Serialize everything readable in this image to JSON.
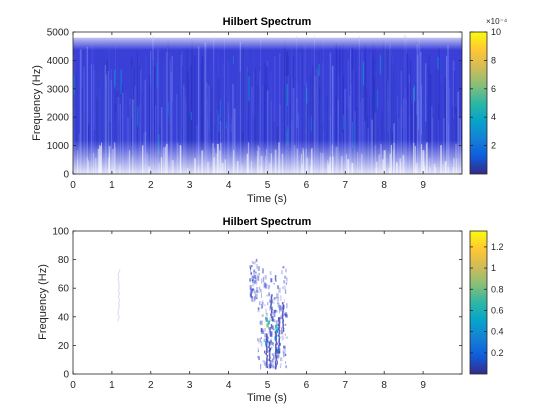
{
  "chart_data": [
    {
      "type": "heatmap",
      "title": "Hilbert Spectrum",
      "xlabel": "Time (s)",
      "ylabel": "Frequency (Hz)",
      "xlim": [
        0,
        10
      ],
      "ylim": [
        0,
        5000
      ],
      "x_ticks": [
        "0",
        "1",
        "2",
        "3",
        "4",
        "5",
        "6",
        "7",
        "8",
        "9"
      ],
      "y_ticks": [
        "0",
        "1000",
        "2000",
        "3000",
        "4000",
        "5000"
      ],
      "colorbar": {
        "min": 0,
        "max": 10,
        "ticks": [
          "2",
          "4",
          "6",
          "8",
          "10"
        ],
        "exponent_label": "×10⁻⁴"
      },
      "colormap": "parula",
      "signal_band_hz": [
        0,
        4800
      ],
      "description": "dense low-energy band across all time"
    },
    {
      "type": "heatmap",
      "title": "Hilbert Spectrum",
      "xlabel": "Time (s)",
      "ylabel": "Frequency (Hz)",
      "xlim": [
        0,
        10
      ],
      "ylim": [
        0,
        100
      ],
      "x_ticks": [
        "0",
        "1",
        "2",
        "3",
        "4",
        "5",
        "6",
        "7",
        "8",
        "9"
      ],
      "y_ticks": [
        "0",
        "20",
        "40",
        "60",
        "80",
        "100"
      ],
      "colorbar": {
        "min": 0,
        "max": 1.35,
        "ticks": [
          "0.2",
          "0.4",
          "0.6",
          "0.8",
          "1",
          "1.2"
        ],
        "exponent_label": ""
      },
      "colormap": "parula",
      "description": "sparse energy bursts near 1.2 s and 4.5–5.5 s"
    }
  ],
  "colors": {
    "parula": [
      "#352a87",
      "#0f5cdd",
      "#1481d6",
      "#06a4ca",
      "#2eb7a4",
      "#87bf77",
      "#d1bb59",
      "#fec832",
      "#f9fb0e"
    ],
    "background": "#ffffff",
    "axis": "#262626"
  }
}
